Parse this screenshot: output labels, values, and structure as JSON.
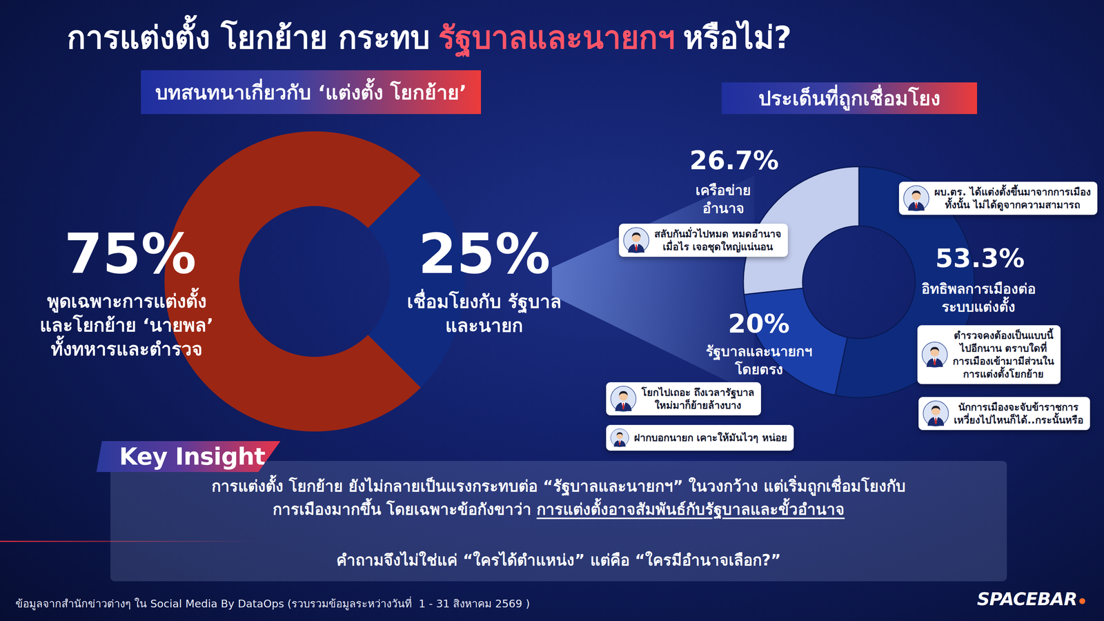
{
  "title": {
    "lead": "การแต่งตั้ง โยกย้าย กระทบ",
    "highlight": "รัฐบาลและนายกฯ",
    "tail": "หรือไม่?"
  },
  "chart_data": [
    {
      "type": "donut",
      "title": "บทสนทนาเกี่ยวกับ ‘แต่งตั้ง โยกย้าย’",
      "categories": [
        "พูดเฉพาะการแต่งตั้ง\nและโยกย้าย ‘นายพล’\nทั้งทหารและตำรวจ",
        "เชื่อมโยงกับ รัฐบาล\nและนายก"
      ],
      "values": [
        75,
        25
      ],
      "value_labels": [
        "75%",
        "25%"
      ],
      "colors": [
        "#9c2614",
        "#0f2a7e"
      ],
      "data_labels": true
    },
    {
      "type": "donut",
      "title": "ประเด็นที่ถูกเชื่อมโยง",
      "categories": [
        "อิทธิพลการเมืองต่อ\nระบบแต่งตั้ง",
        "รัฐบาลและนายกฯ\nโดยตรง",
        "เครือข่าย\nอำนาจ"
      ],
      "values": [
        53.3,
        20,
        26.7
      ],
      "value_labels": [
        "53.3%",
        "20%",
        "26.7%"
      ],
      "colors": [
        "#0e2a7c",
        "#1b3fa8",
        "#c3cdee"
      ],
      "data_labels": true
    }
  ],
  "quotes": [
    "สลับกันมั่วไปหมด หมดอำนาจ\nเมื่อไร เจอชุดใหญ่แน่นอน",
    "ผบ.ตร. ได้แต่งตั้งขึ้นมาจากการเมือง\nทั้งนั้น ไม่ได้ดูจากความสามารถ",
    "ตำรวจคงต้องเป็นแบบนี้\nไปอีกนาน ตราบใดที่\nการเมืองเข้ามามีส่วนใน\nการแต่งตั้งโยกย้าย",
    "โยกไปเถอะ ถึงเวลารัฐบาล\nใหม่มาก็ย้ายล้างบาง",
    "นักการเมืองจะจับข้าราชการ\nเหวี่ยงไปไหนก็ได้..กระนั้นหรือ",
    "ฝากบอกนายก เคาะให้มันไวๆ หน่อย"
  ],
  "key_insight": {
    "label": "Key Insight",
    "lines": [
      "การแต่งตั้ง โยกย้าย ยังไม่กลายเป็นแรงกระทบต่อ “รัฐบาลและนายกฯ” ในวงกว้าง แต่เริ่มถูกเชื่อมโยงกับ",
      "การเมืองมากขึ้น โดยเฉพาะข้อกังขาว่า"
    ],
    "emphasis": "การแต่งตั้งอาจสัมพันธ์กับรัฐบาลและขั้วอำนาจ",
    "question": "คำถามจึงไม่ใช่แค่ “ใครได้ตำแหน่ง” แต่คือ “ใครมีอำนาจเลือก?”"
  },
  "source": "ข้อมูลจากสำนักข่าวต่างๆ ใน Social Media By DataOps (รวบรวมข้อมูลระหว่างวันที่  1 - 31 สิงหาคม 2569 )",
  "brand": "SPACEBAR"
}
